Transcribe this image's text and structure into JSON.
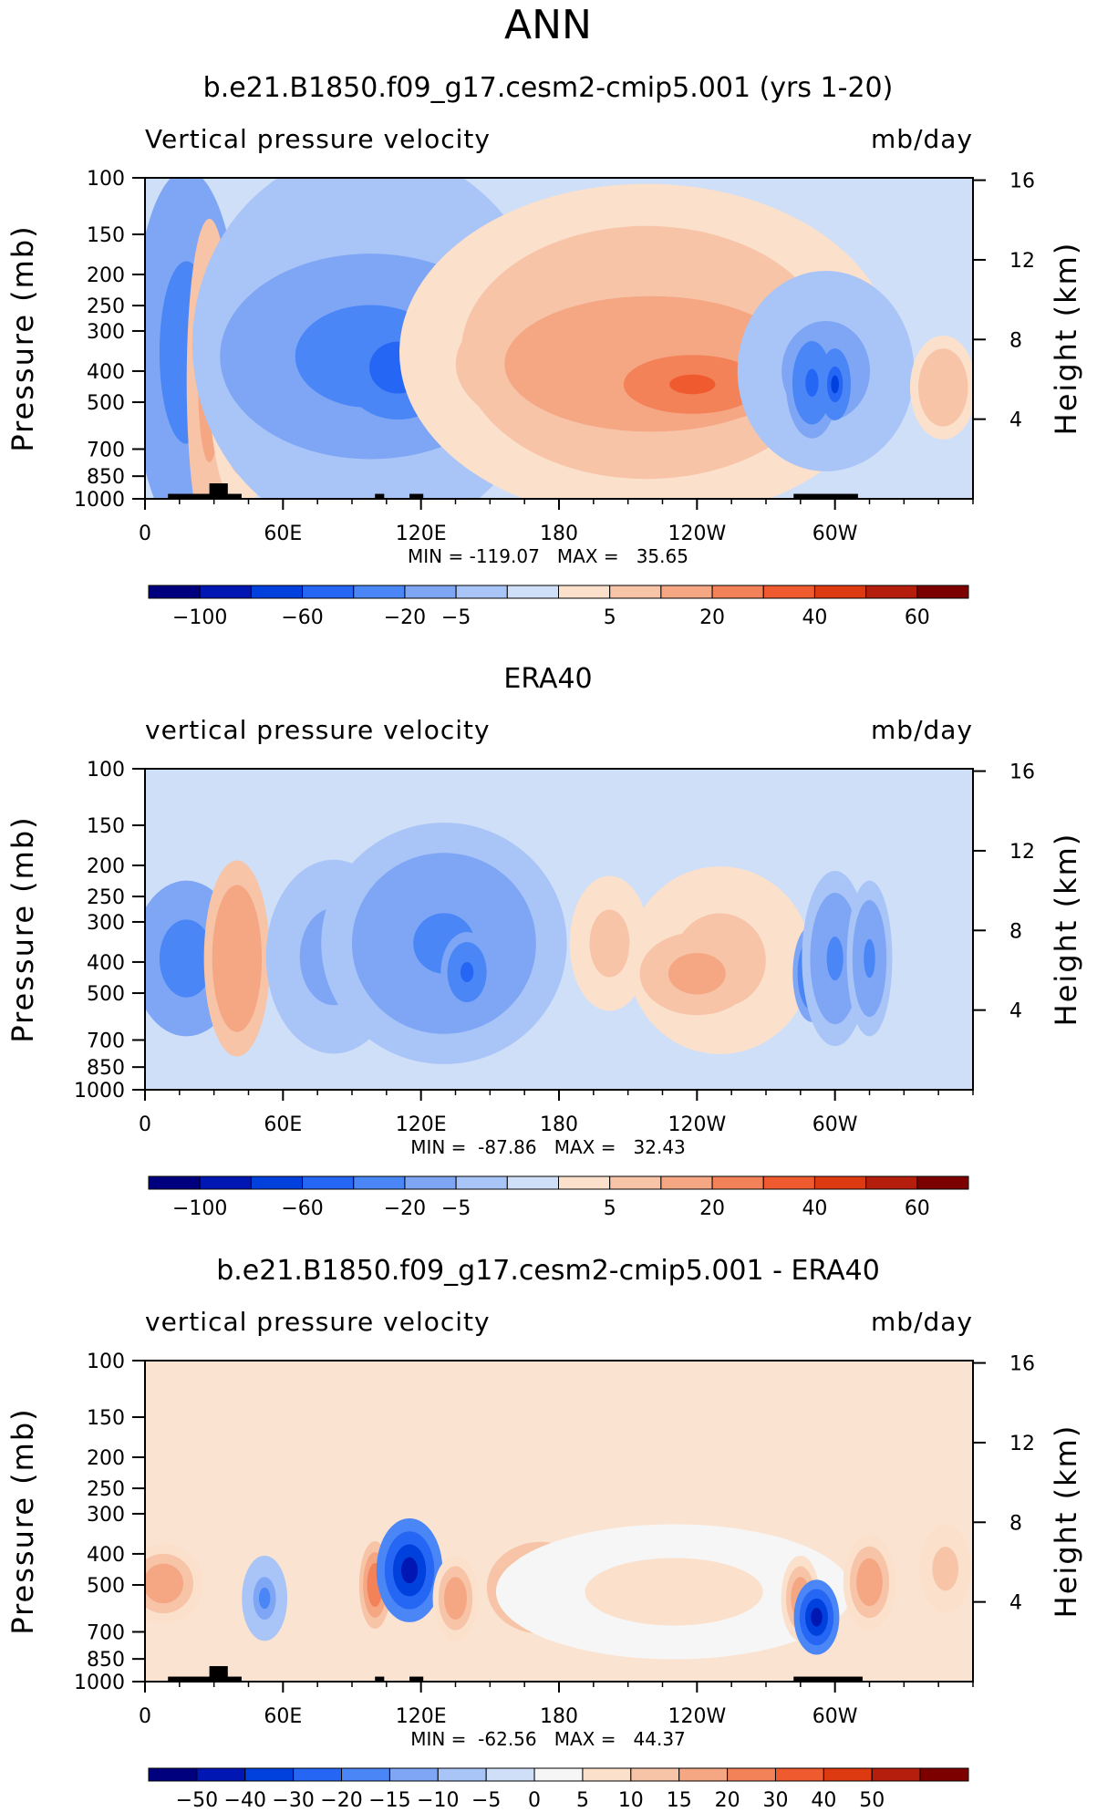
{
  "page_title": "ANN",
  "palettes": {
    "full": [
      "#00007f",
      "#0017b4",
      "#0040dd",
      "#2566f5",
      "#4a86f6",
      "#7ea6f5",
      "#a9c4f7",
      "#cfdff8",
      "#fbe0cc",
      "#f7c4a8",
      "#f5a683",
      "#f38259",
      "#ef5a2e",
      "#dd3a12",
      "#b51e0c",
      "#7d0000"
    ],
    "diff": [
      "#00007f",
      "#0017b4",
      "#0040dd",
      "#2566f5",
      "#4a86f6",
      "#7ea6f5",
      "#a9c4f7",
      "#cfdff8",
      "#f6f6f6",
      "#fbe0cc",
      "#f7c4a8",
      "#f5a683",
      "#f38259",
      "#ef5a2e",
      "#dd3a12",
      "#b51e0c",
      "#7d0000"
    ]
  },
  "chart_data": [
    {
      "type": "heatmap",
      "title": "b.e21.B1850.f09_g17.cesm2-cmip5.001 (yrs 1-20)",
      "left_label": "Vertical pressure velocity",
      "right_label": "mb/day",
      "ylabel": "Pressure (mb)",
      "ylabel_right": "Height (km)",
      "x_ticks": [
        "0",
        "60E",
        "120E",
        "180",
        "120W",
        "60W"
      ],
      "y_ticks": [
        "100",
        "150",
        "200",
        "250",
        "300",
        "400",
        "500",
        "700",
        "850",
        "1000"
      ],
      "y_ticks_right": [
        "16",
        "12",
        "8",
        "4"
      ],
      "stats_label": "MIN = -119.07   MAX =   35.65",
      "stats": {
        "min": -119.07,
        "max": 35.65
      },
      "colorbar": {
        "palette": "full",
        "labels": [
          "-100",
          "-60",
          "-20",
          "-5",
          "5",
          "20",
          "40",
          "60"
        ]
      },
      "lon_range": [
        0,
        360
      ],
      "pressure_range": [
        100,
        1000
      ],
      "regions": [
        {
          "lon": 6,
          "p": 180,
          "lw": 6,
          "ph": 350,
          "v": -15
        },
        {
          "lon": 18,
          "p": 50,
          "lw": 14,
          "ph": 600,
          "v": -30
        },
        {
          "lon": 28,
          "p": 80,
          "lw": 5,
          "ph": 700,
          "v": 15
        },
        {
          "lon": 42,
          "p": 100,
          "lw": 8,
          "ph": 600,
          "v": 10
        },
        {
          "lon": 42,
          "p": 350,
          "lw": 4,
          "ph": 250,
          "v": 25
        },
        {
          "lon": 98,
          "p": 40,
          "lw": 50,
          "ph": 580,
          "v": -12
        },
        {
          "lon": 98,
          "p": 140,
          "lw": 42,
          "ph": 440,
          "v": -30
        },
        {
          "lon": 110,
          "p": 260,
          "lw": 15,
          "ph": 260,
          "v": -50
        },
        {
          "lon": 140,
          "p": 290,
          "lw": 5,
          "ph": 180,
          "v": -45
        },
        {
          "lon": 218,
          "p": 60,
          "lw": 70,
          "ph": 580,
          "v": 10
        },
        {
          "lon": 220,
          "p": 170,
          "lw": 55,
          "ph": 420,
          "v": 20
        },
        {
          "lon": 238,
          "p": 330,
          "lw": 25,
          "ph": 220,
          "v": 35
        },
        {
          "lon": 296,
          "p": 160,
          "lw": 24,
          "ph": 480,
          "v": -15
        },
        {
          "lon": 290,
          "p": 280,
          "lw": 6,
          "ph": 310,
          "v": -40
        },
        {
          "lon": 300,
          "p": 340,
          "lw": 3,
          "ph": 200,
          "v": -60
        },
        {
          "lon": 347,
          "p": 300,
          "lw": 8,
          "ph": 300,
          "v": 10
        }
      ],
      "land_blocks": [
        {
          "lon_start": 10,
          "lon_end": 42,
          "p_top": 965
        },
        {
          "lon_start": 28,
          "lon_end": 36,
          "p_top": 895
        },
        {
          "lon_start": 100,
          "lon_end": 104,
          "p_top": 965
        },
        {
          "lon_start": 115,
          "lon_end": 121,
          "p_top": 965
        },
        {
          "lon_start": 282,
          "lon_end": 310,
          "p_top": 965
        }
      ]
    },
    {
      "type": "heatmap",
      "title": "ERA40",
      "left_label": "vertical pressure velocity",
      "right_label": "mb/day",
      "ylabel": "Pressure (mb)",
      "ylabel_right": "Height (km)",
      "x_ticks": [
        "0",
        "60E",
        "120E",
        "180",
        "120W",
        "60W"
      ],
      "y_ticks": [
        "100",
        "150",
        "200",
        "250",
        "300",
        "400",
        "500",
        "700",
        "850",
        "1000"
      ],
      "y_ticks_right": [
        "16",
        "12",
        "8",
        "4"
      ],
      "stats_label": "MIN =  -87.86   MAX =   32.43",
      "stats": {
        "min": -87.86,
        "max": 32.43
      },
      "colorbar": {
        "palette": "full",
        "labels": [
          "-100",
          "-60",
          "-20",
          "-5",
          "5",
          "20",
          "40",
          "60"
        ]
      },
      "lon_range": [
        0,
        360
      ],
      "pressure_range": [
        100,
        1000
      ],
      "regions": [
        {
          "lon": 6,
          "p": 250,
          "lw": 6,
          "ph": 250,
          "v": -10
        },
        {
          "lon": 18,
          "p": 200,
          "lw": 14,
          "ph": 380,
          "v": -25
        },
        {
          "lon": 40,
          "p": 160,
          "lw": 8,
          "ph": 460,
          "v": 20
        },
        {
          "lon": 82,
          "p": 160,
          "lw": 18,
          "ph": 450,
          "v": -15
        },
        {
          "lon": 100,
          "p": 330,
          "lw": 3,
          "ph": 200,
          "v": -40
        },
        {
          "lon": 130,
          "p": 110,
          "lw": 34,
          "ph": 480,
          "v": -20
        },
        {
          "lon": 140,
          "p": 320,
          "lw": 6,
          "ph": 220,
          "v": -40
        },
        {
          "lon": 202,
          "p": 200,
          "lw": 10,
          "ph": 300,
          "v": 8
        },
        {
          "lon": 250,
          "p": 170,
          "lw": 25,
          "ph": 450,
          "v": 8
        },
        {
          "lon": 240,
          "p": 320,
          "lw": 15,
          "ph": 230,
          "v": 15
        },
        {
          "lon": 290,
          "p": 300,
          "lw": 4,
          "ph": 270,
          "v": -45
        },
        {
          "lon": 300,
          "p": 180,
          "lw": 8,
          "ph": 420,
          "v": -20
        },
        {
          "lon": 315,
          "p": 200,
          "lw": 5,
          "ph": 380,
          "v": -20
        }
      ],
      "land_blocks": []
    },
    {
      "type": "heatmap",
      "title": "b.e21.B1850.f09_g17.cesm2-cmip5.001 - ERA40",
      "left_label": "vertical pressure velocity",
      "right_label": "mb/day",
      "ylabel": "Pressure (mb)",
      "ylabel_right": "Height (km)",
      "x_ticks": [
        "0",
        "60E",
        "120E",
        "180",
        "120W",
        "60W"
      ],
      "y_ticks": [
        "100",
        "150",
        "200",
        "250",
        "300",
        "400",
        "500",
        "700",
        "850",
        "1000"
      ],
      "y_ticks_right": [
        "16",
        "12",
        "8",
        "4"
      ],
      "stats_label": "MIN =  -62.56   MAX =   44.37",
      "stats": {
        "min": -62.56,
        "max": 44.37
      },
      "colorbar": {
        "palette": "diff",
        "labels": [
          "-50",
          "-40",
          "-30",
          "-20",
          "-15",
          "-10",
          "-5",
          "0",
          "5",
          "10",
          "15",
          "20",
          "30",
          "40",
          "50"
        ]
      },
      "lon_range": [
        0,
        360
      ],
      "pressure_range": [
        100,
        1000
      ],
      "regions": [
        {
          "lon": 8,
          "p": 370,
          "lw": 10,
          "ph": 250,
          "v": 20
        },
        {
          "lon": 52,
          "p": 400,
          "lw": 5,
          "ph": 300,
          "v": -15
        },
        {
          "lon": 100,
          "p": 360,
          "lw": 3,
          "ph": 280,
          "v": 30
        },
        {
          "lon": 115,
          "p": 300,
          "lw": 8,
          "ph": 300,
          "v": -40
        },
        {
          "lon": 135,
          "p": 400,
          "lw": 5,
          "ph": 300,
          "v": 20
        },
        {
          "lon": 172,
          "p": 360,
          "lw": 14,
          "ph": 300,
          "v": 25
        },
        {
          "lon": 230,
          "p": 300,
          "lw": 50,
          "ph": 450,
          "v": 8
        },
        {
          "lon": 285,
          "p": 400,
          "lw": 4,
          "ph": 300,
          "v": 20
        },
        {
          "lon": 292,
          "p": 480,
          "lw": 5,
          "ph": 300,
          "v": -40
        },
        {
          "lon": 315,
          "p": 340,
          "lw": 6,
          "ph": 300,
          "v": 20
        },
        {
          "lon": 348,
          "p": 320,
          "lw": 6,
          "ph": 250,
          "v": 15
        }
      ],
      "land_blocks": [
        {
          "lon_start": 10,
          "lon_end": 42,
          "p_top": 965
        },
        {
          "lon_start": 28,
          "lon_end": 36,
          "p_top": 895
        },
        {
          "lon_start": 100,
          "lon_end": 104,
          "p_top": 965
        },
        {
          "lon_start": 115,
          "lon_end": 121,
          "p_top": 965
        },
        {
          "lon_start": 282,
          "lon_end": 312,
          "p_top": 965
        }
      ]
    }
  ]
}
